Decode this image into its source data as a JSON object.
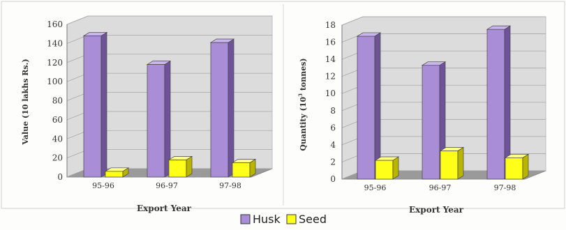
{
  "colors": {
    "husk": "#a98dd6",
    "husk_side": "#6f5399",
    "husk_top": "#c9b5ee",
    "seed": "#ffff1a",
    "seed_side": "#b9b400",
    "seed_top": "#ffff8a",
    "wall": "#dcdcdc",
    "floor": "#9a9a9a"
  },
  "legend": {
    "husk": "Husk",
    "seed": "Seed"
  },
  "chart_data": [
    {
      "type": "bar",
      "categories": [
        "95-96",
        "96-97",
        "97-98"
      ],
      "series": [
        {
          "name": "Husk",
          "values": [
            148,
            118,
            141
          ]
        },
        {
          "name": "Seed",
          "values": [
            6,
            18,
            15
          ]
        }
      ],
      "xlabel": "Export Year",
      "ylabel": "Value (10 lakhs Rs.)",
      "ylim": [
        0,
        160
      ],
      "yticks": [
        0,
        20,
        40,
        60,
        80,
        100,
        120,
        140,
        160
      ],
      "grid": true,
      "legend_position": "bottom-center"
    },
    {
      "type": "bar",
      "categories": [
        "95-96",
        "96-97",
        "97-98"
      ],
      "series": [
        {
          "name": "Husk",
          "values": [
            16.7,
            13.3,
            17.5
          ]
        },
        {
          "name": "Seed",
          "values": [
            2.2,
            3.3,
            2.5
          ]
        }
      ],
      "xlabel": "Export Year",
      "ylabel_main": "Quantity (10",
      "ylabel_sup": "3",
      "ylabel_end": " tonnes)",
      "ylim": [
        0,
        18
      ],
      "yticks": [
        0,
        2,
        4,
        6,
        8,
        10,
        12,
        14,
        16,
        18
      ],
      "grid": true,
      "legend_position": "bottom-center"
    }
  ]
}
